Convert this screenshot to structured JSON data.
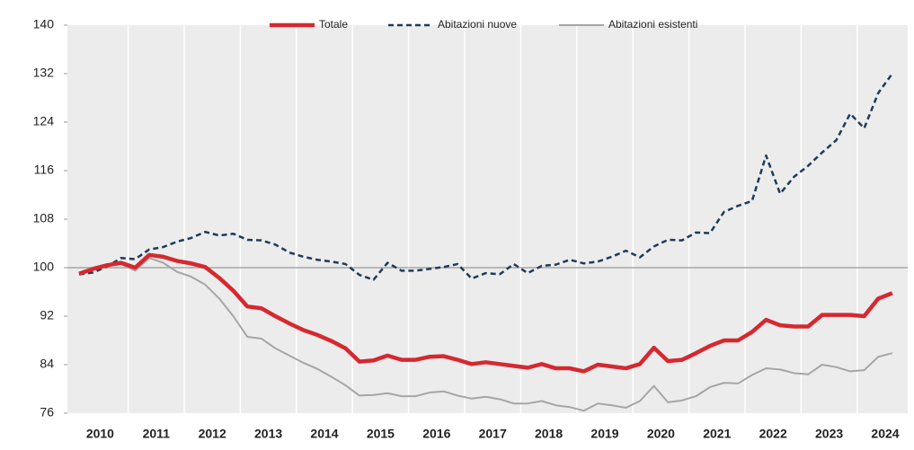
{
  "chart_data": {
    "type": "line",
    "categories": [
      null,
      "2010",
      null,
      null,
      null,
      "2011",
      null,
      null,
      null,
      "2012",
      null,
      null,
      null,
      "2013",
      null,
      null,
      null,
      "2014",
      null,
      null,
      null,
      "2015",
      null,
      null,
      null,
      "2016",
      null,
      null,
      null,
      "2017",
      null,
      null,
      null,
      "2018",
      null,
      null,
      null,
      "2019",
      null,
      null,
      null,
      "2020",
      null,
      null,
      null,
      "2021",
      null,
      null,
      null,
      "2022",
      null,
      null,
      null,
      "2023",
      null,
      null,
      null,
      "2024",
      null
    ],
    "series": [
      {
        "name": "Totale",
        "color": "#d7282f",
        "style": "thick",
        "values": [
          99.0,
          99.8,
          100.4,
          100.8,
          100.0,
          102.1,
          101.8,
          101.1,
          100.7,
          100.1,
          98.3,
          96.2,
          93.6,
          93.3,
          92.0,
          90.8,
          89.7,
          88.9,
          87.9,
          86.7,
          84.5,
          84.7,
          85.5,
          84.8,
          84.8,
          85.3,
          85.4,
          84.8,
          84.1,
          84.4,
          84.1,
          83.8,
          83.5,
          84.1,
          83.4,
          83.4,
          82.9,
          84.0,
          83.7,
          83.4,
          84.1,
          86.8,
          84.6,
          84.8,
          85.9,
          87.1,
          88.0,
          88.0,
          89.4,
          91.4,
          90.5,
          90.3,
          90.3,
          92.2,
          92.2,
          92.2,
          92.0,
          94.9,
          95.8
        ]
      },
      {
        "name": "Abitazioni nuove",
        "color": "#1f3b5a",
        "style": "dashed",
        "values": [
          98.9,
          99.2,
          100.2,
          101.6,
          101.4,
          103.0,
          103.4,
          104.3,
          104.9,
          105.9,
          105.3,
          105.6,
          104.6,
          104.5,
          103.8,
          102.5,
          101.8,
          101.3,
          101.0,
          100.6,
          98.8,
          98.0,
          100.8,
          99.5,
          99.5,
          99.8,
          100.1,
          100.6,
          98.2,
          99.1,
          98.9,
          100.6,
          99.1,
          100.3,
          100.5,
          101.3,
          100.7,
          101.0,
          101.8,
          102.8,
          101.7,
          103.5,
          104.6,
          104.5,
          105.8,
          105.7,
          109.2,
          110.2,
          111.0,
          118.5,
          112.2,
          115.0,
          116.8,
          119.0,
          121.0,
          125.4,
          123.0,
          128.8,
          132.0
        ]
      },
      {
        "name": "Abitazioni esistenti",
        "color": "#a6a6a6",
        "style": "solid",
        "values": [
          99.0,
          100.0,
          100.6,
          100.6,
          99.5,
          101.6,
          100.8,
          99.3,
          98.5,
          97.2,
          94.9,
          92.0,
          88.6,
          88.3,
          86.7,
          85.5,
          84.3,
          83.3,
          82.0,
          80.6,
          78.9,
          79.0,
          79.3,
          78.8,
          78.8,
          79.4,
          79.6,
          78.9,
          78.4,
          78.7,
          78.3,
          77.6,
          77.6,
          78.0,
          77.3,
          77.0,
          76.4,
          77.6,
          77.3,
          76.9,
          78.0,
          80.5,
          77.8,
          78.1,
          78.8,
          80.3,
          81.0,
          80.9,
          82.3,
          83.4,
          83.2,
          82.6,
          82.4,
          84.0,
          83.6,
          82.9,
          83.1,
          85.3,
          85.9
        ]
      }
    ],
    "ylim": [
      76,
      140
    ],
    "yticks": [
      76,
      84,
      92,
      100,
      108,
      116,
      124,
      132,
      140
    ],
    "reference_line": 100,
    "legend": "top"
  }
}
